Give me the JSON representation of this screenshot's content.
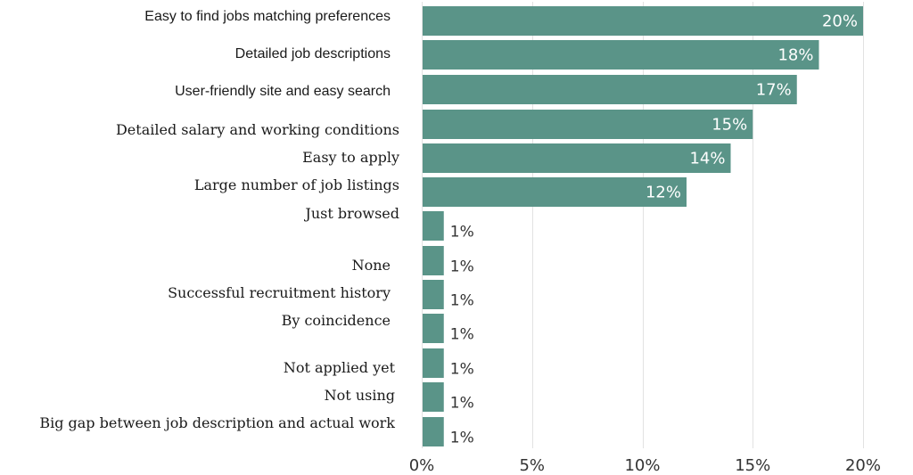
{
  "chart_data": {
    "type": "bar",
    "orientation": "horizontal",
    "categories": [
      "Easy to find jobs matching preferences",
      "Detailed job descriptions",
      "User-friendly site and easy search",
      "Detailed salary and working conditions",
      "Easy to apply",
      "Large number of job listings",
      "Just browsed",
      "None",
      "Successful recruitment history",
      "By coincidence",
      "Not applied yet",
      "Not using",
      "Big gap between job description and actual work"
    ],
    "values": [
      20,
      18,
      17,
      15,
      14,
      12,
      1,
      1,
      1,
      1,
      1,
      1,
      1
    ],
    "value_labels": [
      "20%",
      "18%",
      "17%",
      "15%",
      "14%",
      "12%",
      "1%",
      "1%",
      "1%",
      "1%",
      "1%",
      "1%",
      "1%"
    ],
    "xticks": [
      "0%",
      "5%",
      "10%",
      "15%",
      "20%"
    ],
    "xlim": [
      0,
      20
    ],
    "grid": "vertical",
    "bar_color": "#5a9488",
    "grid_color": "#e2e2e2",
    "title": "",
    "xlabel": "",
    "ylabel": ""
  }
}
